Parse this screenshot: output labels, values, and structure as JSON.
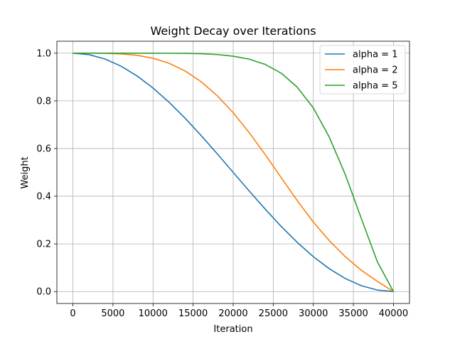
{
  "chart_data": {
    "type": "line",
    "title": "Weight Decay over Iterations",
    "xlabel": "Iteration",
    "ylabel": "Weight",
    "xlim": [
      -2000,
      42000
    ],
    "ylim": [
      -0.05,
      1.05
    ],
    "xticks": [
      0,
      5000,
      10000,
      15000,
      20000,
      25000,
      30000,
      35000,
      40000
    ],
    "xtick_labels": [
      "0",
      "5000",
      "10000",
      "15000",
      "20000",
      "25000",
      "30000",
      "35000",
      "40000"
    ],
    "yticks": [
      0.0,
      0.2,
      0.4,
      0.6,
      0.8,
      1.0
    ],
    "ytick_labels": [
      "0.0",
      "0.2",
      "0.4",
      "0.6",
      "0.8",
      "1.0"
    ],
    "grid": true,
    "legend_position": "top-right",
    "x": [
      0,
      2000,
      4000,
      6000,
      8000,
      10000,
      12000,
      14000,
      16000,
      18000,
      20000,
      22000,
      24000,
      26000,
      28000,
      30000,
      32000,
      34000,
      36000,
      38000,
      40000
    ],
    "series": [
      {
        "name": "alpha = 1",
        "color": "#1f77b4",
        "values": [
          1.0,
          0.9938,
          0.9755,
          0.9455,
          0.9045,
          0.8536,
          0.7939,
          0.727,
          0.6545,
          0.5782,
          0.5,
          0.4218,
          0.3455,
          0.273,
          0.2061,
          0.1464,
          0.0955,
          0.0545,
          0.0245,
          0.0062,
          0.0
        ]
      },
      {
        "name": "alpha = 2",
        "color": "#ff7f0e",
        "values": [
          1.0,
          1.0,
          0.9994,
          0.997,
          0.9909,
          0.9786,
          0.9576,
          0.9253,
          0.8802,
          0.8218,
          0.75,
          0.6667,
          0.5744,
          0.4774,
          0.3812,
          0.2914,
          0.2133,
          0.1459,
          0.089,
          0.0425,
          0.0
        ]
      },
      {
        "name": "alpha = 5",
        "color": "#2ca02c",
        "values": [
          1.0,
          1.0,
          1.0,
          1.0,
          1.0,
          0.9999,
          0.9997,
          0.9991,
          0.9975,
          0.9941,
          0.9873,
          0.9748,
          0.9527,
          0.9158,
          0.857,
          0.7702,
          0.6471,
          0.4896,
          0.3052,
          0.124,
          0.0
        ]
      }
    ]
  }
}
